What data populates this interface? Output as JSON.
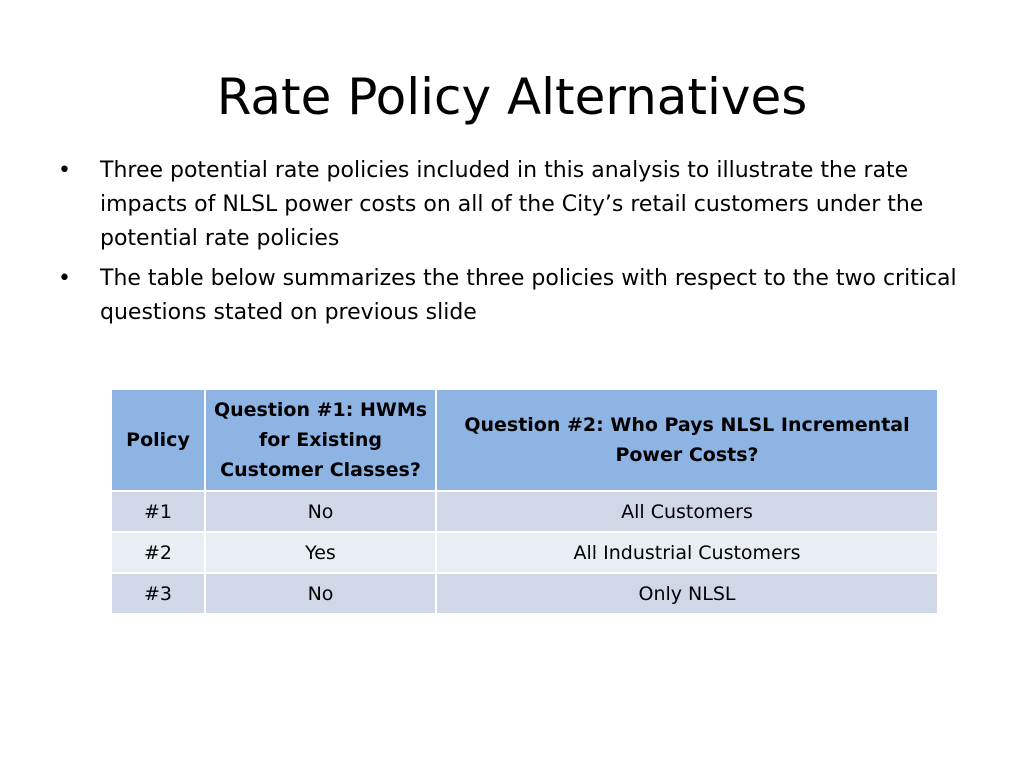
{
  "slide": {
    "title": "Rate Policy Alternatives",
    "bullet_symbol": "•",
    "bullets": [
      "Three potential rate policies included in this analysis to illustrate the rate impacts of NLSL power costs on all of the City’s retail customers under the potential rate policies",
      "The table below summarizes the three policies with respect to the two critical questions stated on previous slide"
    ]
  },
  "table": {
    "headers": {
      "policy": "Policy",
      "question1": "Question #1: HWMs for Existing Customer Classes?",
      "question2": "Question #2:  Who Pays NLSL Incremental Power Costs?"
    },
    "rows": [
      {
        "policy": "#1",
        "question1": "No",
        "question2": "All Customers"
      },
      {
        "policy": "#2",
        "question1": "Yes",
        "question2": "All Industrial Customers"
      },
      {
        "policy": "#3",
        "question1": "No",
        "question2": "Only NLSL"
      }
    ]
  },
  "colors": {
    "header_fill": "#8eb4e3",
    "row_fill_dark": "#d0d8e8",
    "row_fill_light": "#e9edf4"
  }
}
